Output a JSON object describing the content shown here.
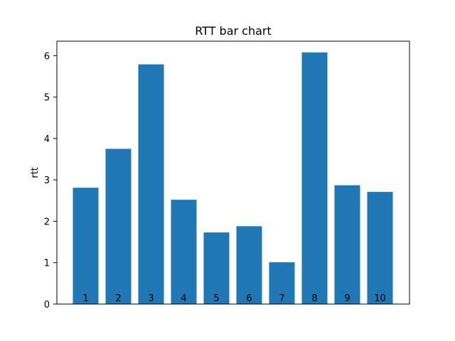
{
  "chart_data": {
    "type": "bar",
    "title": "RTT bar chart",
    "xlabel": "",
    "ylabel": "rtt",
    "categories": [
      "1",
      "2",
      "3",
      "4",
      "5",
      "6",
      "7",
      "8",
      "9",
      "10"
    ],
    "values": [
      2.81,
      3.75,
      5.79,
      2.52,
      1.73,
      1.88,
      1.01,
      6.08,
      2.87,
      2.71
    ],
    "ylim": [
      0,
      6.35
    ],
    "yticks": [
      "0",
      "1",
      "2",
      "3",
      "4",
      "5",
      "6"
    ],
    "grid": false,
    "legend": "none",
    "bar_color": "#1f77b4",
    "x_tick_labels_shown": false,
    "bar_labels_inside_bottom": true
  }
}
